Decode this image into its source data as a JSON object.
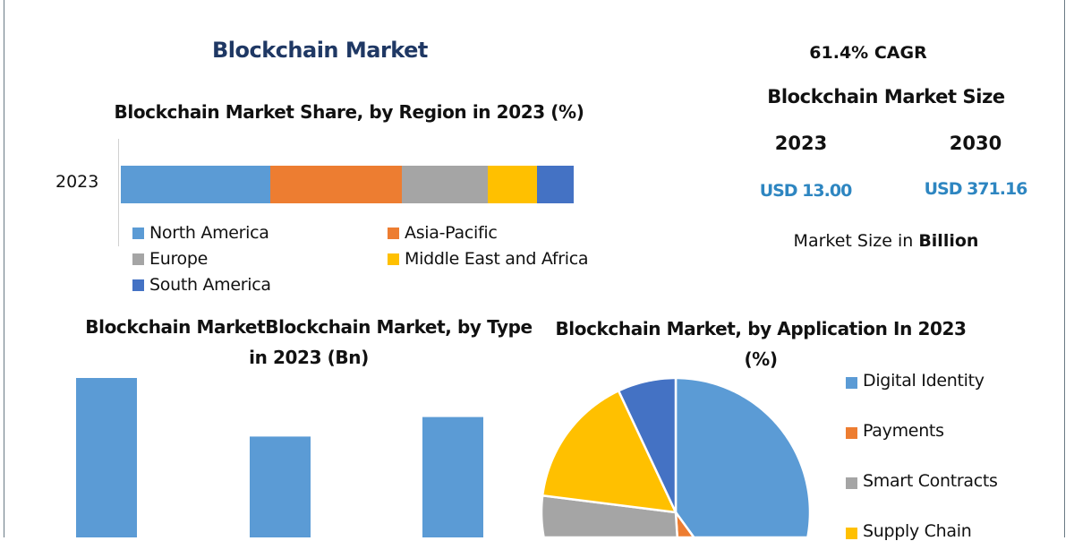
{
  "header": {
    "title": "Blockchain Market"
  },
  "summary": {
    "cagr": "61.4% CAGR",
    "size_title": "Blockchain Market Size",
    "year_1": "2023",
    "year_2": "2030",
    "value_1": "USD 13.00",
    "value_2": "USD 371.16",
    "unit_prefix": "Market Size in ",
    "unit_bold": "Billion"
  },
  "colors": {
    "blue": "#5b9bd5",
    "orange": "#ed7d31",
    "gray": "#a5a5a5",
    "yellow": "#ffc000",
    "dark_blue": "#4472c4",
    "title_blue": "#1f3864",
    "value_blue": "#2e86c1"
  },
  "chart_data": [
    {
      "type": "bar",
      "orientation": "horizontal-stacked",
      "title": "Blockchain Market Share, by Region in 2023 (%)",
      "categories": [
        "2023"
      ],
      "series": [
        {
          "name": "North America",
          "values": [
            33
          ],
          "color": "#5b9bd5"
        },
        {
          "name": "Asia-Pacific",
          "values": [
            29
          ],
          "color": "#ed7d31"
        },
        {
          "name": "Europe",
          "values": [
            19
          ],
          "color": "#a5a5a5"
        },
        {
          "name": "Middle East and Africa",
          "values": [
            11
          ],
          "color": "#ffc000"
        },
        {
          "name": "South America",
          "values": [
            8
          ],
          "color": "#4472c4"
        }
      ],
      "legend": "bottom"
    },
    {
      "type": "bar",
      "title": "Blockchain MarketBlockchain Market, by Type in 2023 (Bn)",
      "values": [
        5.0,
        3.5,
        4.0
      ],
      "color": "#5b9bd5"
    },
    {
      "type": "pie",
      "title": "Blockchain Market, by Application In 2023 (%)",
      "slices": [
        {
          "name": "Digital Identity",
          "value": 40,
          "color": "#5b9bd5"
        },
        {
          "name": "Payments",
          "value": 9,
          "color": "#ed7d31"
        },
        {
          "name": "Smart Contracts",
          "value": 28,
          "color": "#a5a5a5"
        },
        {
          "name": "Supply Chain",
          "value": 16,
          "color": "#ffc000"
        },
        {
          "value": 7,
          "color": "#4472c4"
        }
      ],
      "legend": "right"
    }
  ]
}
